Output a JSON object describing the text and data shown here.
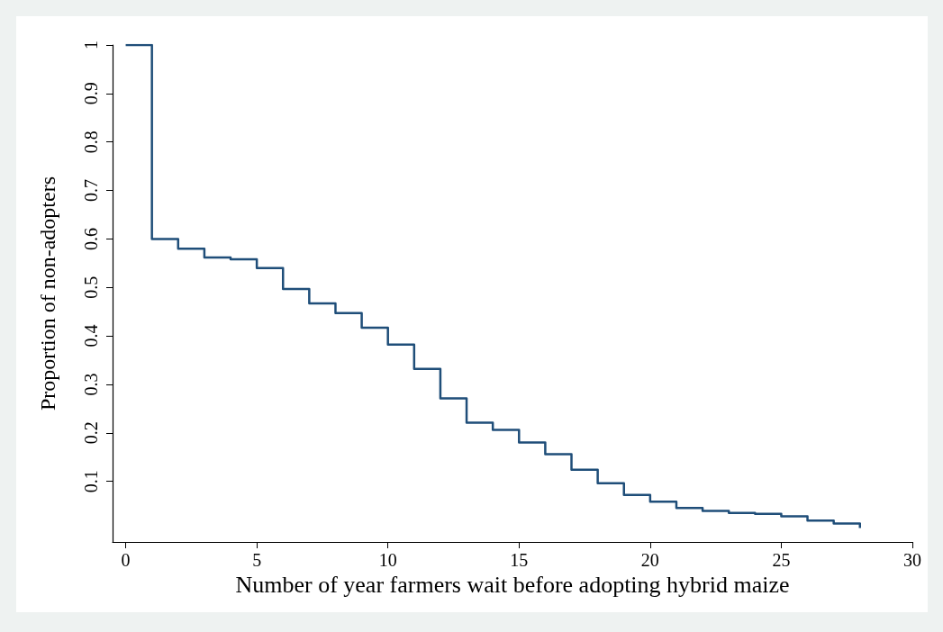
{
  "chart_data": {
    "type": "step",
    "xlabel": "Number of year farmers wait before adopting hybrid maize",
    "ylabel": "Proportion of non-adopters",
    "x": [
      0,
      1,
      2,
      3,
      4,
      5,
      6,
      7,
      8,
      9,
      10,
      11,
      12,
      13,
      14,
      15,
      16,
      17,
      18,
      19,
      20,
      21,
      22,
      23,
      24,
      25,
      26,
      27,
      28
    ],
    "series": [
      {
        "color": "#1f4e79",
        "values": [
          1,
          0.6,
          0.58,
          0.562,
          0.558,
          0.54,
          0.497,
          0.467,
          0.447,
          0.417,
          0.382,
          0.332,
          0.271,
          0.221,
          0.206,
          0.18,
          0.156,
          0.124,
          0.096,
          0.072,
          0.058,
          0.045,
          0.039,
          0.035,
          0.033,
          0.028,
          0.019,
          0.013,
          0.004
        ]
      }
    ],
    "xlim": [
      -0.5,
      30
    ],
    "xticks": [
      0,
      5,
      10,
      15,
      20,
      25,
      30
    ],
    "ylim": [
      -0.025,
      1
    ],
    "yticks": [
      0.1,
      0.2,
      0.3,
      0.4,
      0.5,
      0.6,
      0.7,
      0.8,
      0.9,
      1
    ],
    "grid": false,
    "marker": "none",
    "line_style": "solid"
  }
}
